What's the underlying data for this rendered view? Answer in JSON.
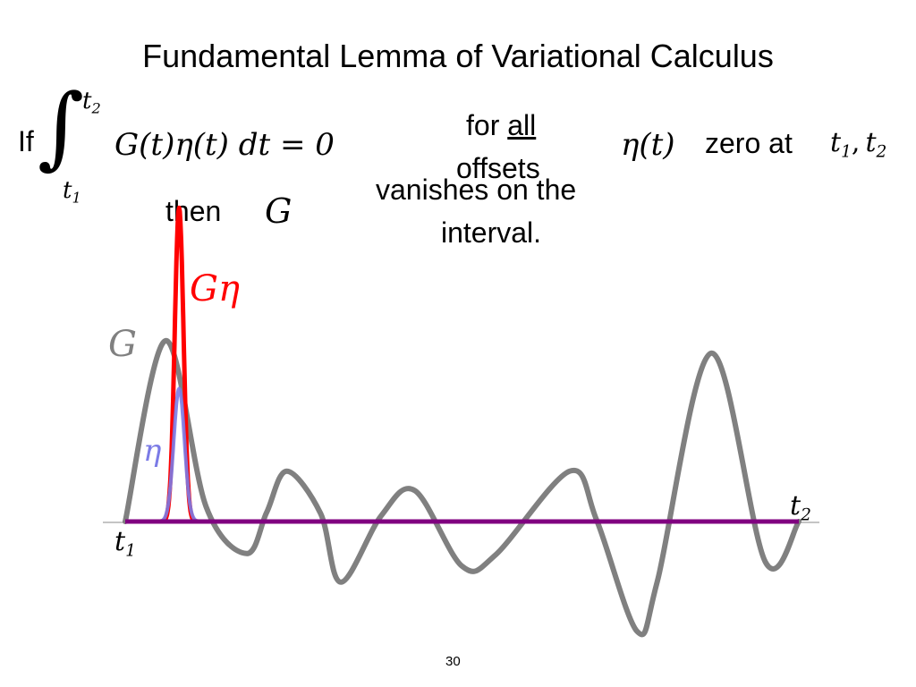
{
  "slide": {
    "title": "Fundamental Lemma of  Variational Calculus",
    "page_number": "30"
  },
  "statement": {
    "if_word": "If",
    "integral_sign": "∫",
    "integral_lower": "t",
    "integral_lower_sub": "1",
    "integral_upper": "t",
    "integral_upper_sub": "2",
    "integrand": "G(t)η(t) dt = 0",
    "for_word": "for",
    "all_word": "all",
    "offsets_word": "offsets",
    "eta_func": "η(t)",
    "zero_at": "zero at",
    "endpoint_1": "t",
    "endpoint_1_sub": "1",
    "comma": ",",
    "endpoint_2": "t",
    "endpoint_2_sub": "2",
    "then_word": "then",
    "then_symbol": "G",
    "conclusion_line1": "vanishes on the",
    "conclusion_line2": "interval."
  },
  "plot": {
    "labels": {
      "G_eta": "Gη",
      "G": "G",
      "eta": "η",
      "t1": "t",
      "t1_sub": "1",
      "t2": "t",
      "t2_sub": "2"
    },
    "colors": {
      "G": "#808080",
      "G_eta": "#ff0000",
      "eta": "#7b7be6",
      "baseline": "#800080",
      "axis": "#b0b0b0"
    },
    "curves": {
      "G_points": [
        [
          0,
          0.0
        ],
        [
          0.06,
          1.58
        ],
        [
          0.12,
          0.13
        ],
        [
          0.18,
          -0.28
        ],
        [
          0.21,
          0.08
        ],
        [
          0.24,
          0.44
        ],
        [
          0.29,
          0.07
        ],
        [
          0.32,
          -0.53
        ],
        [
          0.38,
          0.05
        ],
        [
          0.43,
          0.27
        ],
        [
          0.5,
          -0.39
        ],
        [
          0.55,
          -0.29
        ],
        [
          0.66,
          0.44
        ],
        [
          0.7,
          0.01
        ],
        [
          0.76,
          -0.96
        ],
        [
          0.79,
          -0.52
        ],
        [
          0.87,
          1.47
        ],
        [
          0.95,
          -0.35
        ],
        [
          1.0,
          0.0
        ]
      ],
      "eta_center": 0.08,
      "eta_peak": 1.16,
      "eta_width": 0.008,
      "G_eta_peak": 2.74,
      "G_eta_width": 0.0065
    }
  }
}
